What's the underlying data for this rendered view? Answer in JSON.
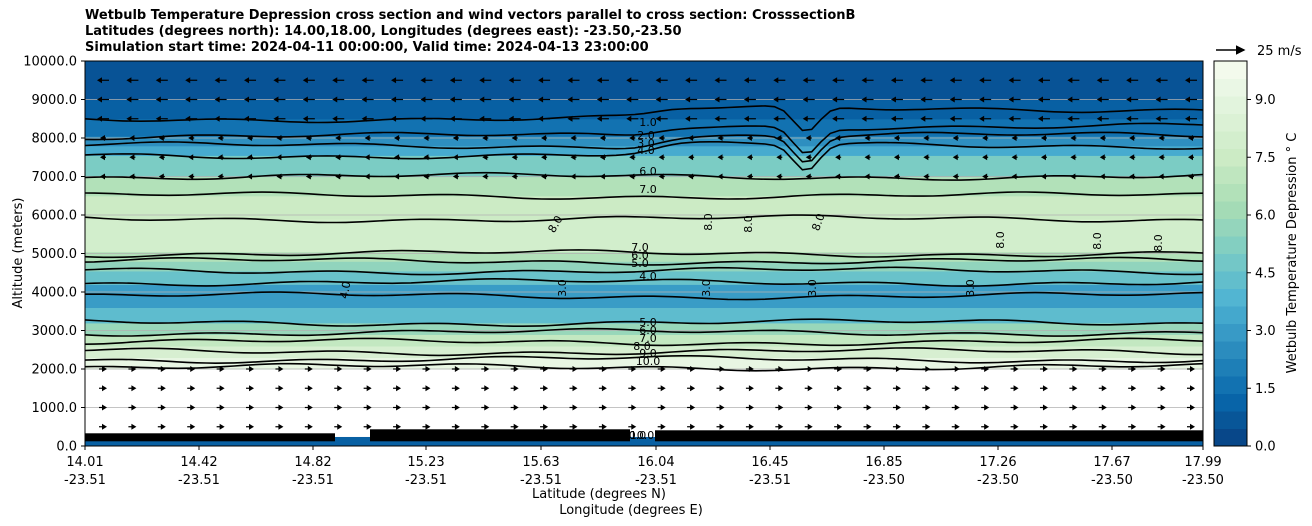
{
  "chart_data": {
    "type": "contour",
    "title_lines": [
      "Wetbulb Temperature Depression cross section and wind vectors parallel to cross section: CrosssectionB",
      "Latitudes (degrees north): 14.00,18.00, Longitudes (degrees east): -23.50,-23.50",
      "Simulation start time: 2024-04-11 00:00:00, Valid time: 2024-04-13 23:00:00"
    ],
    "xlabel_line1": "Latitude (degrees N)",
    "xlabel_line2": "Longitude (degrees E)",
    "ylabel": "Altitude (meters)",
    "colorbar_label": "Wetbulb Temperature Depression $^\\circ$C",
    "colorbar_label_display": "Wetbulb Temperature Depression ° C",
    "quiver_key_label": "25 m/s",
    "y_range": [
      0,
      10000
    ],
    "y_ticks": [
      "0.0",
      "1000.0",
      "2000.0",
      "3000.0",
      "4000.0",
      "5000.0",
      "6000.0",
      "7000.0",
      "8000.0",
      "9000.0",
      "10000.0"
    ],
    "x_ticks": [
      {
        "lat": "14.01",
        "lon": "-23.51"
      },
      {
        "lat": "14.42",
        "lon": "-23.51"
      },
      {
        "lat": "14.82",
        "lon": "-23.51"
      },
      {
        "lat": "15.23",
        "lon": "-23.51"
      },
      {
        "lat": "15.63",
        "lon": "-23.51"
      },
      {
        "lat": "16.04",
        "lon": "-23.51"
      },
      {
        "lat": "16.45",
        "lon": "-23.51"
      },
      {
        "lat": "16.85",
        "lon": "-23.50"
      },
      {
        "lat": "17.26",
        "lon": "-23.50"
      },
      {
        "lat": "17.67",
        "lon": "-23.50"
      },
      {
        "lat": "17.99",
        "lon": "-23.50"
      }
    ],
    "colorbar_range": [
      0,
      10
    ],
    "colorbar_ticks": [
      "0.0",
      "1.5",
      "3.0",
      "4.5",
      "6.0",
      "7.5",
      "9.0"
    ],
    "colormap": "GnBu_r",
    "grid": "horizontal",
    "contour_levels": [
      {
        "value": 1.0,
        "altitude_m": 8500
      },
      {
        "value": 2.0,
        "altitude_m": 8050
      },
      {
        "value": 3.0,
        "altitude_m": 7800
      },
      {
        "value": 4.0,
        "altitude_m": 7550
      },
      {
        "value": 6.0,
        "altitude_m": 7000
      },
      {
        "value": 7.0,
        "altitude_m": 6500
      },
      {
        "value": 8.0,
        "altitude_m": 5900
      },
      {
        "value": 7.0,
        "altitude_m": 5000
      },
      {
        "value": 6.0,
        "altitude_m": 4800
      },
      {
        "value": 5.0,
        "altitude_m": 4550
      },
      {
        "value": 4.0,
        "altitude_m": 4250
      },
      {
        "value": 3.0,
        "altitude_m": 3900
      },
      {
        "value": 5.0,
        "altitude_m": 3200
      },
      {
        "value": 6.0,
        "altitude_m": 2950
      },
      {
        "value": 7.0,
        "altitude_m": 2700
      },
      {
        "value": 8.0,
        "altitude_m": 2450
      },
      {
        "value": 9.0,
        "altitude_m": 2250
      },
      {
        "value": 10.0,
        "altitude_m": 2050
      }
    ],
    "contour_labels": [
      {
        "text": "1.0"
      },
      {
        "text": "2.0"
      },
      {
        "text": "3.0"
      },
      {
        "text": "4.0"
      },
      {
        "text": "6.0"
      },
      {
        "text": "7.0"
      },
      {
        "text": "8.0"
      },
      {
        "text": "8.0"
      },
      {
        "text": "8.0"
      },
      {
        "text": "8.0"
      },
      {
        "text": "8.0"
      },
      {
        "text": "8.0"
      },
      {
        "text": "8.0"
      },
      {
        "text": "7.0"
      },
      {
        "text": "6.0"
      },
      {
        "text": "5.0"
      },
      {
        "text": "4.0"
      },
      {
        "text": "4.0"
      },
      {
        "text": "3.0"
      },
      {
        "text": "3.0"
      },
      {
        "text": "3.0"
      },
      {
        "text": "3.0"
      },
      {
        "text": "5.0"
      },
      {
        "text": "6.0"
      },
      {
        "text": "7.0"
      },
      {
        "text": "8.0"
      },
      {
        "text": "9.0"
      },
      {
        "text": "10.0"
      },
      {
        "text": "10.0"
      },
      {
        "text": "10.0"
      }
    ],
    "field_bands": [
      {
        "from_m": 0,
        "to_m": 250,
        "value": 1.0
      },
      {
        "from_m": 250,
        "to_m": 2000,
        "value": 10.0
      },
      {
        "from_m": 2000,
        "to_m": 2300,
        "value": 9.2
      },
      {
        "from_m": 2300,
        "to_m": 2600,
        "value": 8.2
      },
      {
        "from_m": 2600,
        "to_m": 2900,
        "value": 7.2
      },
      {
        "from_m": 2900,
        "to_m": 3200,
        "value": 5.8
      },
      {
        "from_m": 3200,
        "to_m": 3600,
        "value": 4.2
      },
      {
        "from_m": 3600,
        "to_m": 4200,
        "value": 3.0
      },
      {
        "from_m": 4200,
        "to_m": 4550,
        "value": 4.5
      },
      {
        "from_m": 4550,
        "to_m": 4800,
        "value": 5.6
      },
      {
        "from_m": 4800,
        "to_m": 5050,
        "value": 6.6
      },
      {
        "from_m": 5050,
        "to_m": 5900,
        "value": 7.9
      },
      {
        "from_m": 5900,
        "to_m": 6500,
        "value": 7.5
      },
      {
        "from_m": 6500,
        "to_m": 7000,
        "value": 6.6
      },
      {
        "from_m": 7000,
        "to_m": 7550,
        "value": 5.0
      },
      {
        "from_m": 7550,
        "to_m": 7800,
        "value": 3.5
      },
      {
        "from_m": 7800,
        "to_m": 8050,
        "value": 2.6
      },
      {
        "from_m": 8050,
        "to_m": 8500,
        "value": 1.6
      },
      {
        "from_m": 8500,
        "to_m": 9000,
        "value": 1.0
      },
      {
        "from_m": 9000,
        "to_m": 10000,
        "value": 0.6
      }
    ],
    "wind_rows": [
      {
        "altitude_m": 9500,
        "direction": "west"
      },
      {
        "altitude_m": 9000,
        "direction": "west"
      },
      {
        "altitude_m": 8500,
        "direction": "west"
      },
      {
        "altitude_m": 8000,
        "direction": "west"
      },
      {
        "altitude_m": 7500,
        "direction": "west"
      },
      {
        "altitude_m": 7000,
        "direction": "west"
      },
      {
        "altitude_m": 2000,
        "direction": "east"
      },
      {
        "altitude_m": 1500,
        "direction": "east"
      },
      {
        "altitude_m": 1000,
        "direction": "east"
      },
      {
        "altitude_m": 500,
        "direction": "east"
      }
    ]
  }
}
